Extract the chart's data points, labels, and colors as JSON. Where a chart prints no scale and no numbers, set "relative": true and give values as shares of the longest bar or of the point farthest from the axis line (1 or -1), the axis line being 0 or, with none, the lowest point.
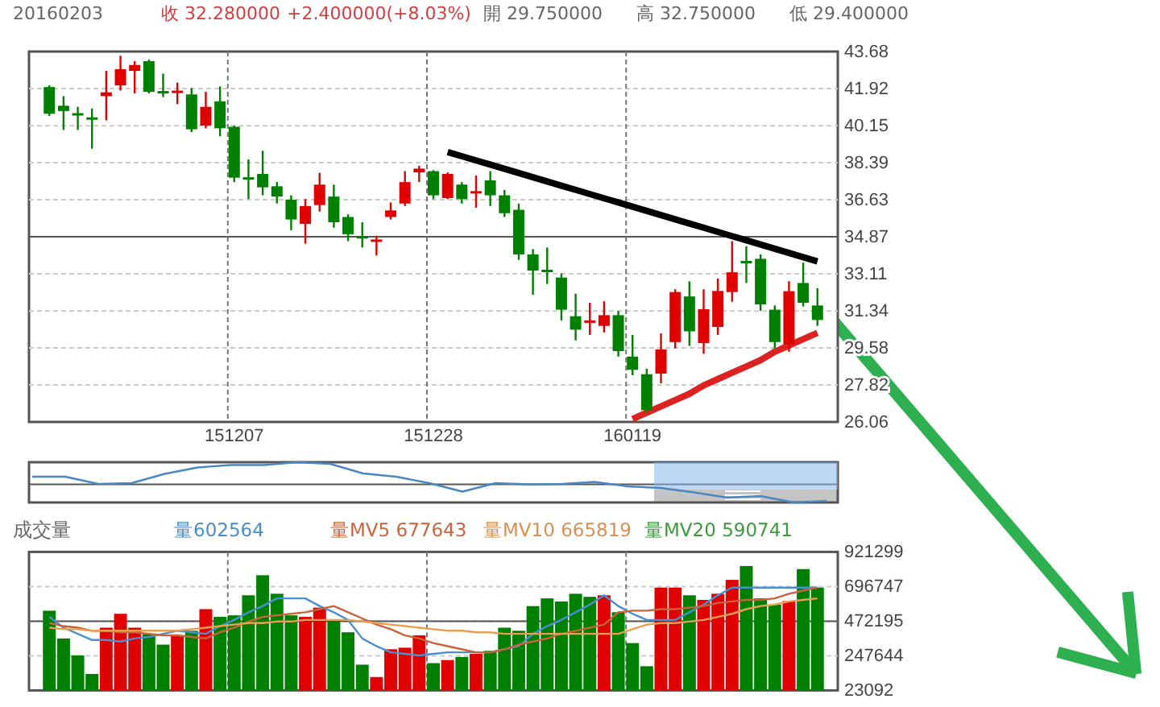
{
  "chart_data": [
    {
      "type": "candlestick",
      "annotations": [
        "20160203",
        "收 32.280000",
        "+2.400000(+8.03%)",
        "開 29.750000",
        "高 32.750000",
        "低 29.400000"
      ],
      "categories": [
        null,
        null,
        null,
        null,
        null,
        null,
        null,
        null,
        null,
        null,
        null,
        null,
        null,
        "151207",
        null,
        null,
        null,
        null,
        null,
        null,
        null,
        null,
        null,
        null,
        null,
        null,
        null,
        "151228",
        null,
        null,
        null,
        null,
        null,
        null,
        null,
        null,
        null,
        null,
        null,
        null,
        null,
        "160119",
        null,
        null,
        null,
        null,
        null,
        null,
        null,
        null,
        null,
        null,
        null,
        null,
        null
      ],
      "ohlc": [
        [
          41.99,
          42.07,
          40.62,
          40.72
        ],
        [
          41.1,
          41.56,
          39.95,
          40.85
        ],
        [
          40.75,
          41.05,
          39.95,
          40.7
        ],
        [
          40.55,
          40.97,
          39.06,
          40.5
        ],
        [
          41.56,
          42.76,
          40.41,
          41.74
        ],
        [
          42.07,
          43.48,
          41.82,
          42.84
        ],
        [
          42.76,
          43.22,
          41.69,
          43.04
        ],
        [
          43.22,
          43.3,
          41.69,
          41.76
        ],
        [
          41.8,
          42.63,
          41.51,
          41.76
        ],
        [
          41.78,
          42.2,
          41.18,
          41.82
        ],
        [
          41.64,
          41.94,
          39.85,
          39.98
        ],
        [
          40.16,
          41.76,
          40.03,
          41.05
        ],
        [
          41.31,
          42.02,
          39.65,
          40.03
        ],
        [
          40.1,
          40.16,
          37.47,
          37.68
        ],
        [
          37.7,
          38.55,
          36.66,
          37.65
        ],
        [
          37.86,
          38.96,
          36.84,
          37.22
        ],
        [
          37.27,
          37.47,
          36.45,
          36.78
        ],
        [
          36.63,
          36.84,
          35.18,
          35.69
        ],
        [
          35.48,
          36.66,
          34.54,
          36.33
        ],
        [
          36.38,
          37.91,
          36.07,
          37.35
        ],
        [
          36.78,
          37.35,
          35.3,
          35.56
        ],
        [
          35.81,
          35.94,
          34.66,
          34.99
        ],
        [
          34.9,
          35.56,
          34.36,
          34.87
        ],
        [
          34.7,
          34.92,
          33.98,
          34.74
        ],
        [
          35.81,
          36.5,
          35.69,
          36.12
        ],
        [
          36.45,
          37.99,
          36.33,
          37.47
        ],
        [
          37.93,
          38.24,
          37.47,
          38.11
        ],
        [
          37.99,
          38.04,
          36.66,
          36.84
        ],
        [
          36.71,
          37.93,
          36.66,
          37.86
        ],
        [
          37.35,
          37.47,
          36.45,
          36.66
        ],
        [
          37.0,
          37.78,
          36.25,
          37.04
        ],
        [
          37.55,
          37.99,
          36.33,
          36.84
        ],
        [
          36.84,
          37.09,
          35.81,
          35.99
        ],
        [
          36.15,
          36.45,
          33.77,
          34.03
        ],
        [
          34.03,
          34.28,
          32.11,
          33.26
        ],
        [
          33.3,
          34.36,
          32.62,
          33.26
        ],
        [
          32.93,
          33.13,
          30.89,
          31.4
        ],
        [
          31.09,
          32.16,
          29.94,
          30.45
        ],
        [
          30.86,
          31.73,
          30.2,
          30.89
        ],
        [
          30.63,
          31.8,
          30.32,
          31.14
        ],
        [
          31.14,
          31.34,
          29.17,
          29.43
        ],
        [
          29.17,
          30.2,
          28.28,
          28.54
        ],
        [
          28.33,
          28.59,
          26.49,
          26.62
        ],
        [
          28.36,
          30.27,
          27.9,
          29.51
        ],
        [
          29.86,
          32.37,
          29.56,
          32.24
        ],
        [
          32.03,
          32.75,
          29.68,
          30.37
        ],
        [
          29.81,
          32.37,
          29.3,
          31.42
        ],
        [
          30.58,
          32.88,
          30.2,
          32.29
        ],
        [
          32.24,
          34.66,
          31.78,
          33.18
        ],
        [
          33.72,
          34.41,
          32.67,
          33.69
        ],
        [
          33.82,
          34.03,
          31.34,
          31.65
        ],
        [
          31.4,
          31.6,
          29.56,
          29.86
        ],
        [
          29.75,
          32.75,
          29.4,
          32.28
        ],
        [
          32.67,
          33.64,
          31.55,
          31.73
        ],
        [
          31.6,
          32.42,
          30.63,
          30.91
        ]
      ],
      "series": [
        {
          "type": "line",
          "color": "#000000",
          "values": [
            null,
            null,
            null,
            null,
            null,
            null,
            null,
            null,
            null,
            null,
            null,
            null,
            null,
            null,
            null,
            null,
            null,
            null,
            null,
            null,
            null,
            null,
            null,
            null,
            null,
            null,
            null,
            null,
            38.9,
            38.7,
            38.5,
            38.3,
            38.1,
            37.9,
            37.7,
            37.5,
            37.3,
            37.1,
            36.9,
            36.7,
            36.5,
            36.3,
            36.1,
            35.9,
            35.7,
            35.5,
            35.3,
            35.1,
            34.9,
            34.7,
            34.5,
            34.3,
            34.1,
            33.9,
            33.7
          ]
        },
        {
          "type": "line",
          "color": "#dd2222",
          "values": [
            null,
            null,
            null,
            null,
            null,
            null,
            null,
            null,
            null,
            null,
            null,
            null,
            null,
            null,
            null,
            null,
            null,
            null,
            null,
            null,
            null,
            null,
            null,
            null,
            null,
            null,
            null,
            null,
            null,
            null,
            null,
            null,
            null,
            null,
            null,
            null,
            null,
            null,
            null,
            null,
            null,
            26.2,
            26.5,
            26.8,
            27.1,
            27.4,
            27.8,
            28.1,
            28.4,
            28.7,
            29.0,
            29.4,
            29.7,
            30.0,
            30.3
          ]
        }
      ],
      "ref_lines": [
        {
          "axis": "y",
          "value": 34.87
        }
      ],
      "ylim": [
        26.06,
        43.68
      ],
      "yticks": [
        26.06,
        27.82,
        29.58,
        31.34,
        33.11,
        34.87,
        36.63,
        38.39,
        40.15,
        41.92,
        43.68
      ],
      "grid": true
    },
    {
      "type": "line",
      "relative": true,
      "tick_labels": false,
      "ref_lines": [
        {
          "axis": "y",
          "value": 0.45
        }
      ],
      "categories": [
        null,
        null,
        null,
        null,
        null,
        null,
        null,
        null,
        null,
        null,
        null,
        null,
        null,
        null,
        null,
        null,
        null,
        null,
        null,
        null,
        null,
        null,
        null,
        null,
        null
      ],
      "series": [
        {
          "color": "#4a86c0",
          "values": [
            0.64,
            0.64,
            0.46,
            0.48,
            0.71,
            0.87,
            0.93,
            0.93,
            1.0,
            0.96,
            0.72,
            0.64,
            0.48,
            0.27,
            0.48,
            0.45,
            0.46,
            0.51,
            0.4,
            0.36,
            0.25,
            0.12,
            0.16,
            0.0,
            0.04
          ]
        }
      ]
    },
    {
      "type": "bar",
      "title": "成交量",
      "tick_labels": "y",
      "annotations": [
        "量602564",
        "量MV5 677643",
        "量MV10 665819",
        "量MV20 590741"
      ],
      "categories": [
        null,
        null,
        null,
        null,
        null,
        null,
        null,
        null,
        null,
        null,
        null,
        null,
        null,
        "151207",
        null,
        null,
        null,
        null,
        null,
        null,
        null,
        null,
        null,
        null,
        null,
        null,
        null,
        "151228",
        null,
        null,
        null,
        null,
        null,
        null,
        null,
        null,
        null,
        null,
        null,
        null,
        null,
        "160119",
        null,
        null,
        null,
        null,
        null,
        null,
        null,
        null,
        null,
        null,
        null,
        null,
        null
      ],
      "series": [
        {
          "type": "bar",
          "values": [
            540000,
            360000,
            250000,
            130000,
            430000,
            520000,
            430000,
            390000,
            320000,
            380000,
            410000,
            550000,
            500000,
            510000,
            640000,
            770000,
            650000,
            510000,
            500000,
            560000,
            480000,
            400000,
            190000,
            110000,
            290000,
            300000,
            380000,
            200000,
            220000,
            240000,
            260000,
            280000,
            430000,
            410000,
            570000,
            620000,
            600000,
            650000,
            630000,
            640000,
            530000,
            330000,
            180000,
            690000,
            690000,
            640000,
            610000,
            650000,
            740000,
            830000,
            620000,
            580000,
            602564,
            810000,
            690000
          ],
          "colors": [
            "#008000",
            "#008000",
            "#008000",
            "#008000",
            "#e00000",
            "#e00000",
            "#e00000",
            "#008000",
            "#008000",
            "#e00000",
            "#008000",
            "#e00000",
            "#008000",
            "#008000",
            "#008000",
            "#008000",
            "#008000",
            "#008000",
            "#e00000",
            "#e00000",
            "#008000",
            "#008000",
            "#008000",
            "#e00000",
            "#e00000",
            "#e00000",
            "#e00000",
            "#008000",
            "#e00000",
            "#008000",
            "#e00000",
            "#008000",
            "#008000",
            "#008000",
            "#008000",
            "#008000",
            "#008000",
            "#008000",
            "#008000",
            "#e00000",
            "#008000",
            "#008000",
            "#008000",
            "#e00000",
            "#e00000",
            "#008000",
            "#e00000",
            "#e00000",
            "#e00000",
            "#008000",
            "#008000",
            "#008000",
            "#e00000",
            "#008000",
            "#008000"
          ]
        },
        {
          "type": "line",
          "color": "#4a8fd0",
          "values": [
            500000,
            430000,
            390000,
            350000,
            350000,
            340000,
            360000,
            370000,
            390000,
            410000,
            400000,
            390000,
            440000,
            480000,
            530000,
            570000,
            620000,
            620000,
            620000,
            570000,
            530000,
            480000,
            360000,
            310000,
            270000,
            260000,
            250000,
            260000,
            270000,
            270000,
            270000,
            270000,
            290000,
            310000,
            390000,
            440000,
            480000,
            530000,
            580000,
            640000,
            570000,
            520000,
            480000,
            480000,
            480000,
            530000,
            580000,
            640000,
            690000,
            690000,
            690000,
            690000,
            690000,
            690000,
            690000
          ]
        },
        {
          "type": "line",
          "color": "#c8643c",
          "values": [
            460000,
            440000,
            430000,
            410000,
            410000,
            400000,
            400000,
            390000,
            380000,
            380000,
            370000,
            360000,
            400000,
            430000,
            470000,
            500000,
            510000,
            520000,
            530000,
            550000,
            570000,
            530000,
            490000,
            450000,
            420000,
            380000,
            360000,
            330000,
            310000,
            290000,
            270000,
            270000,
            290000,
            320000,
            340000,
            360000,
            390000,
            410000,
            430000,
            450000,
            530000,
            540000,
            540000,
            550000,
            550000,
            560000,
            570000,
            590000,
            600000,
            610000,
            610000,
            620000,
            650000,
            670000,
            690000
          ]
        },
        {
          "type": "line",
          "color": "#e8a050",
          "values": [
            430000,
            420000,
            420000,
            410000,
            410000,
            410000,
            410000,
            410000,
            410000,
            410000,
            420000,
            430000,
            440000,
            450000,
            460000,
            460000,
            470000,
            470000,
            480000,
            480000,
            480000,
            480000,
            470000,
            460000,
            450000,
            440000,
            430000,
            420000,
            410000,
            410000,
            400000,
            400000,
            390000,
            390000,
            390000,
            390000,
            390000,
            390000,
            390000,
            390000,
            390000,
            420000,
            450000,
            460000,
            460000,
            470000,
            480000,
            500000,
            520000,
            550000,
            570000,
            580000,
            600000,
            610000,
            620000
          ]
        }
      ],
      "ref_lines": [
        {
          "axis": "y",
          "value": 472195
        }
      ],
      "ylim": [
        23092,
        921299
      ],
      "yticks": [
        23092,
        247644,
        472195,
        696747,
        921299
      ],
      "grid": true
    }
  ]
}
